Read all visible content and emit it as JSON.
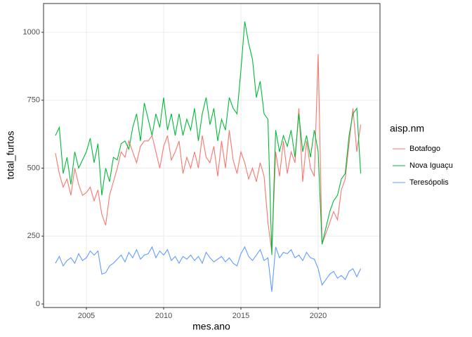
{
  "chart_data": {
    "type": "line",
    "xlabel": "mes.ano",
    "ylabel": "total_furtos",
    "legend_title": "aisp.nm",
    "x": [
      2003,
      2003.25,
      2003.5,
      2003.75,
      2004,
      2004.25,
      2004.5,
      2004.75,
      2005,
      2005.25,
      2005.5,
      2005.75,
      2006,
      2006.25,
      2006.5,
      2006.75,
      2007,
      2007.25,
      2007.5,
      2007.75,
      2008,
      2008.25,
      2008.5,
      2008.75,
      2009,
      2009.25,
      2009.5,
      2009.75,
      2010,
      2010.25,
      2010.5,
      2010.75,
      2011,
      2011.25,
      2011.5,
      2011.75,
      2012,
      2012.25,
      2012.5,
      2012.75,
      2013,
      2013.25,
      2013.5,
      2013.75,
      2014,
      2014.25,
      2014.5,
      2014.75,
      2015,
      2015.25,
      2015.5,
      2015.75,
      2016,
      2016.25,
      2016.5,
      2016.75,
      2017,
      2017.25,
      2017.5,
      2017.75,
      2018,
      2018.25,
      2018.5,
      2018.75,
      2019,
      2019.25,
      2019.5,
      2019.75,
      2020,
      2020.25,
      2020.5,
      2020.75,
      2021,
      2021.25,
      2021.5,
      2021.75,
      2022,
      2022.25,
      2022.5,
      2022.75
    ],
    "series": [
      {
        "name": "Botafogo",
        "color": "#F8766D",
        "values": [
          555,
          480,
          430,
          460,
          400,
          500,
          440,
          400,
          410,
          430,
          380,
          420,
          330,
          290,
          400,
          450,
          500,
          560,
          540,
          600,
          560,
          520,
          580,
          600,
          600,
          620,
          560,
          500,
          580,
          620,
          530,
          560,
          600,
          480,
          540,
          500,
          560,
          500,
          620,
          540,
          520,
          580,
          470,
          600,
          500,
          640,
          530,
          480,
          560,
          520,
          460,
          500,
          450,
          520,
          470,
          300,
          190,
          560,
          470,
          600,
          480,
          560,
          520,
          720,
          450,
          600,
          500,
          470,
          920,
          220,
          260,
          300,
          340,
          310,
          420,
          460,
          590,
          720,
          560,
          660
        ]
      },
      {
        "name": "Nova Iguaçu",
        "color": "#00BA38",
        "values": [
          620,
          650,
          480,
          540,
          440,
          560,
          500,
          530,
          560,
          610,
          520,
          590,
          400,
          500,
          450,
          540,
          530,
          590,
          600,
          570,
          650,
          700,
          600,
          740,
          680,
          620,
          700,
          650,
          760,
          640,
          700,
          620,
          700,
          620,
          680,
          640,
          720,
          600,
          700,
          760,
          660,
          720,
          600,
          680,
          640,
          760,
          720,
          700,
          860,
          1040,
          960,
          900,
          760,
          820,
          700,
          680,
          180,
          640,
          560,
          620,
          580,
          640,
          540,
          700,
          560,
          620,
          540,
          640,
          560,
          220,
          280,
          340,
          380,
          400,
          460,
          480,
          620,
          700,
          720,
          480
        ]
      },
      {
        "name": "Teresópolis",
        "color": "#619CFF",
        "values": [
          150,
          175,
          140,
          160,
          170,
          150,
          185,
          160,
          170,
          195,
          180,
          195,
          110,
          115,
          140,
          150,
          165,
          180,
          155,
          190,
          170,
          200,
          165,
          180,
          185,
          210,
          170,
          195,
          180,
          200,
          160,
          175,
          150,
          175,
          165,
          180,
          160,
          175,
          150,
          190,
          170,
          155,
          165,
          175,
          155,
          170,
          150,
          140,
          185,
          210,
          175,
          160,
          180,
          200,
          160,
          170,
          45,
          210,
          170,
          190,
          185,
          200,
          170,
          180,
          160,
          190,
          170,
          165,
          130,
          70,
          90,
          110,
          120,
          95,
          105,
          90,
          120,
          130,
          100,
          130
        ]
      }
    ],
    "xlim": [
      2002.23,
      2024.0
    ],
    "ylim": [
      -13,
      1106
    ],
    "xticks": [
      2005,
      2010,
      2015,
      2020
    ],
    "yticks": [
      0,
      250,
      500,
      750,
      1000
    ],
    "grid": true,
    "legend": "right"
  }
}
